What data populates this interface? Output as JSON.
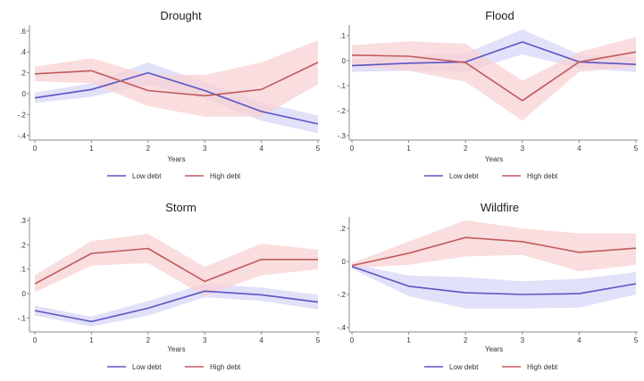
{
  "colors": {
    "low_line": "#5b55c4",
    "high_line": "#c25a5e",
    "low_band": "#d8d7f8",
    "high_band": "#f8d2d3"
  },
  "chart_data": [
    {
      "type": "line",
      "title": "Drought",
      "xlabel": "Years",
      "ylabel": "",
      "x": [
        0,
        1,
        2,
        3,
        4,
        5
      ],
      "x_ticks": [
        "0",
        "1",
        "2",
        "3",
        "4",
        "5"
      ],
      "ylim": [
        -0.42,
        0.62
      ],
      "y_ticks": [
        {
          "v": 0.6,
          "label": ".6"
        },
        {
          "v": 0.4,
          "label": ".4"
        },
        {
          "v": 0.2,
          "label": ".2"
        },
        {
          "v": 0,
          "label": "0"
        },
        {
          "v": -0.2,
          "label": "-.2"
        },
        {
          "v": -0.4,
          "label": "-.4"
        }
      ],
      "legend": [
        "Low debt",
        "High debt"
      ],
      "legend_position": "bottom",
      "grid": false,
      "series": [
        {
          "name": "Low debt",
          "values": [
            -0.04,
            0.04,
            0.2,
            0.03,
            -0.17,
            -0.29
          ],
          "ci_lower": [
            -0.09,
            -0.03,
            0.09,
            -0.05,
            -0.26,
            -0.38
          ],
          "ci_upper": [
            0.01,
            0.1,
            0.3,
            0.11,
            -0.08,
            -0.21
          ]
        },
        {
          "name": "High debt",
          "values": [
            0.19,
            0.22,
            0.03,
            -0.02,
            0.04,
            0.3
          ],
          "ci_lower": [
            0.12,
            0.1,
            -0.12,
            -0.22,
            -0.22,
            0.09
          ],
          "ci_upper": [
            0.26,
            0.34,
            0.18,
            0.18,
            0.3,
            0.51
          ]
        }
      ]
    },
    {
      "type": "line",
      "title": "Flood",
      "xlabel": "Years",
      "ylabel": "",
      "x": [
        0,
        1,
        2,
        3,
        4,
        5
      ],
      "x_ticks": [
        "0",
        "1",
        "2",
        "3",
        "4",
        "5"
      ],
      "ylim": [
        -0.31,
        0.145
      ],
      "y_ticks": [
        {
          "v": 0.1,
          "label": ".1"
        },
        {
          "v": 0,
          "label": "0"
        },
        {
          "v": -0.1,
          "label": "-.1"
        },
        {
          "v": -0.2,
          "label": "-.2"
        },
        {
          "v": -0.3,
          "label": "-.3"
        }
      ],
      "legend": [
        "Low debt",
        "High debt"
      ],
      "legend_position": "bottom",
      "grid": false,
      "series": [
        {
          "name": "Low debt",
          "values": [
            -0.02,
            -0.01,
            -0.005,
            0.075,
            -0.005,
            -0.015
          ],
          "ci_lower": [
            -0.045,
            -0.04,
            -0.045,
            0.025,
            -0.03,
            -0.045
          ],
          "ci_upper": [
            0.005,
            0.02,
            0.03,
            0.125,
            0.025,
            0.015
          ]
        },
        {
          "name": "High debt",
          "values": [
            0.022,
            0.018,
            -0.008,
            -0.16,
            -0.005,
            0.035
          ],
          "ci_lower": [
            -0.02,
            -0.04,
            -0.085,
            -0.24,
            -0.045,
            -0.025
          ],
          "ci_upper": [
            0.062,
            0.078,
            0.068,
            -0.08,
            0.035,
            0.095
          ]
        }
      ]
    },
    {
      "type": "line",
      "title": "Storm",
      "xlabel": "Years",
      "ylabel": "",
      "x": [
        0,
        1,
        2,
        3,
        4,
        5
      ],
      "x_ticks": [
        "0",
        "1",
        "2",
        "3",
        "4",
        "5"
      ],
      "ylim": [
        -0.16,
        0.31
      ],
      "y_ticks": [
        {
          "v": 0.3,
          "label": ".3"
        },
        {
          "v": 0.2,
          "label": ".2"
        },
        {
          "v": 0.1,
          "label": ".1"
        },
        {
          "v": 0,
          "label": "0"
        },
        {
          "v": -0.1,
          "label": "-.1"
        }
      ],
      "legend": [
        "Low debt",
        "High debt"
      ],
      "legend_position": "bottom",
      "grid": false,
      "series": [
        {
          "name": "Low debt",
          "values": [
            -0.07,
            -0.115,
            -0.06,
            0.01,
            -0.005,
            -0.035
          ],
          "ci_lower": [
            -0.09,
            -0.135,
            -0.09,
            -0.015,
            -0.03,
            -0.065
          ],
          "ci_upper": [
            -0.05,
            -0.095,
            -0.03,
            0.04,
            0.025,
            -0.005
          ]
        },
        {
          "name": "High debt",
          "values": [
            0.04,
            0.165,
            0.185,
            0.05,
            0.14,
            0.14
          ],
          "ci_lower": [
            0.005,
            0.115,
            0.125,
            -0.01,
            0.075,
            0.1
          ],
          "ci_upper": [
            0.075,
            0.215,
            0.245,
            0.11,
            0.205,
            0.18
          ]
        }
      ]
    },
    {
      "type": "line",
      "title": "Wildfire",
      "xlabel": "Years",
      "ylabel": "",
      "x": [
        0,
        1,
        2,
        3,
        4,
        5
      ],
      "x_ticks": [
        "0",
        "1",
        "2",
        "3",
        "4",
        "5"
      ],
      "ylim": [
        -0.43,
        0.28
      ],
      "y_ticks": [
        {
          "v": 0.2,
          "label": ".2"
        },
        {
          "v": 0,
          "label": "0"
        },
        {
          "v": -0.2,
          "label": "-.2"
        },
        {
          "v": -0.4,
          "label": "-.4"
        }
      ],
      "legend": [
        "Low debt",
        "High debt"
      ],
      "legend_position": "bottom",
      "grid": false,
      "series": [
        {
          "name": "Low debt",
          "values": [
            -0.03,
            -0.15,
            -0.19,
            -0.2,
            -0.195,
            -0.135
          ],
          "ci_lower": [
            -0.045,
            -0.21,
            -0.285,
            -0.285,
            -0.28,
            -0.2
          ],
          "ci_upper": [
            -0.015,
            -0.085,
            -0.095,
            -0.12,
            -0.105,
            -0.065
          ]
        },
        {
          "name": "High debt",
          "values": [
            -0.025,
            0.05,
            0.145,
            0.12,
            0.055,
            0.08
          ],
          "ci_lower": [
            -0.04,
            -0.02,
            0.03,
            0.04,
            -0.06,
            -0.02
          ],
          "ci_upper": [
            -0.01,
            0.12,
            0.25,
            0.2,
            0.17,
            0.17
          ]
        }
      ]
    }
  ]
}
